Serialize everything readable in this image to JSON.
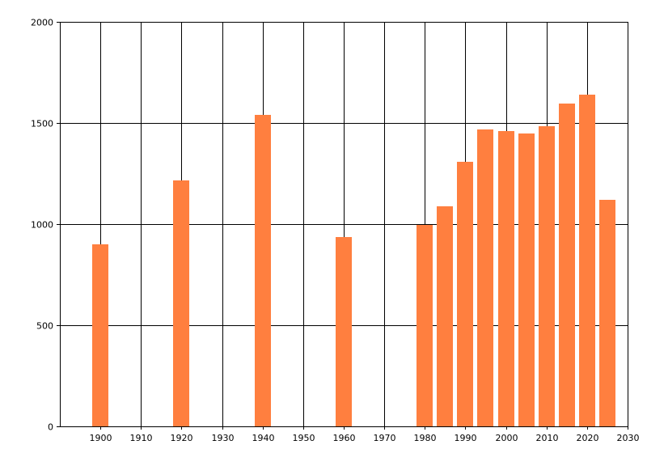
{
  "chart_data": {
    "type": "bar",
    "title": "",
    "xlabel": "",
    "ylabel": "",
    "x": [
      1900,
      1920,
      1940,
      1960,
      1980,
      1985,
      1990,
      1995,
      2000,
      2005,
      2010,
      2015,
      2020,
      2025
    ],
    "values": [
      900,
      1215,
      1540,
      935,
      995,
      1090,
      1310,
      1470,
      1460,
      1450,
      1485,
      1595,
      1640,
      1120
    ],
    "xlim": [
      1890,
      2030
    ],
    "ylim": [
      0,
      2000
    ],
    "x_ticks": [
      1900,
      1910,
      1920,
      1930,
      1940,
      1950,
      1960,
      1970,
      1980,
      1990,
      2000,
      2010,
      2020,
      2030
    ],
    "y_ticks": [
      0,
      500,
      1000,
      1500,
      2000
    ],
    "grid": true,
    "legend": "none",
    "bar_color": "#ff7f3f"
  }
}
